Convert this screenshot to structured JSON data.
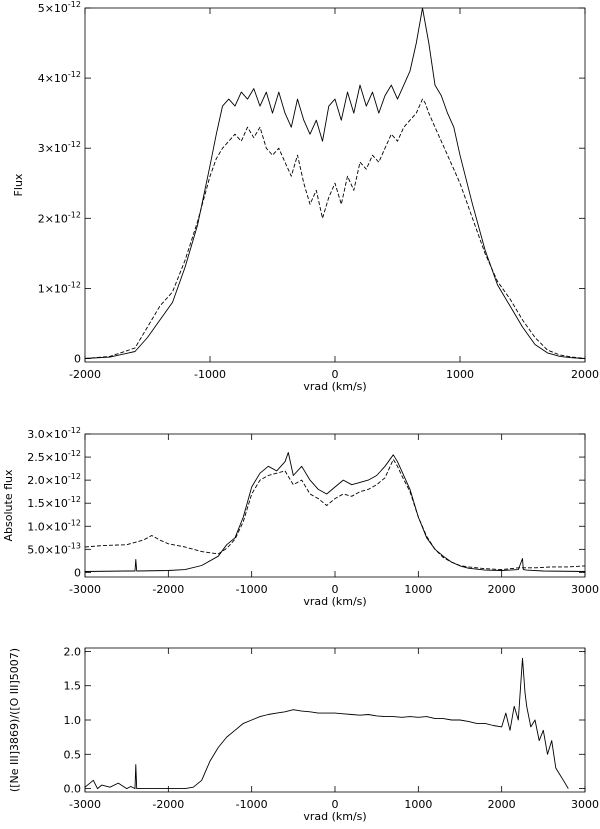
{
  "chart_data": [
    {
      "type": "line",
      "xlabel": "vrad (km/s)",
      "ylabel": "Flux",
      "xlim": [
        -2000,
        2000
      ],
      "ylim": [
        -0.05,
        5.0
      ],
      "y_scale_note": "x10^-12",
      "xticks": [
        -2000,
        -1000,
        0,
        1000,
        2000
      ],
      "xtick_labels": [
        "-2000",
        "-1000",
        "0",
        "1000",
        "2000"
      ],
      "yticks": [
        0,
        1,
        2,
        3,
        4,
        5
      ],
      "ytick_labels": [
        "0",
        "1×10",
        "2×10",
        "3×10",
        "4×10",
        "5×10"
      ],
      "ytick_exp": "-12",
      "series": [
        {
          "style": "solid",
          "x": [
            -2000,
            -1800,
            -1600,
            -1500,
            -1400,
            -1300,
            -1200,
            -1100,
            -1000,
            -950,
            -900,
            -850,
            -800,
            -750,
            -700,
            -650,
            -600,
            -550,
            -500,
            -450,
            -400,
            -350,
            -300,
            -250,
            -200,
            -150,
            -100,
            -50,
            0,
            50,
            100,
            150,
            200,
            250,
            300,
            350,
            400,
            450,
            500,
            550,
            600,
            650,
            700,
            720,
            750,
            800,
            850,
            900,
            950,
            1000,
            1100,
            1200,
            1300,
            1400,
            1500,
            1600,
            1700,
            1800,
            1900,
            2000
          ],
          "y": [
            0.0,
            0.02,
            0.1,
            0.3,
            0.55,
            0.8,
            1.3,
            1.9,
            2.75,
            3.2,
            3.6,
            3.7,
            3.6,
            3.8,
            3.7,
            3.85,
            3.6,
            3.8,
            3.5,
            3.8,
            3.5,
            3.3,
            3.7,
            3.4,
            3.2,
            3.4,
            3.1,
            3.6,
            3.7,
            3.4,
            3.8,
            3.5,
            3.9,
            3.6,
            3.8,
            3.5,
            3.75,
            3.9,
            3.7,
            3.9,
            4.1,
            4.5,
            5.0,
            4.8,
            4.5,
            3.9,
            3.75,
            3.5,
            3.3,
            2.9,
            2.2,
            1.55,
            1.05,
            0.75,
            0.45,
            0.2,
            0.08,
            0.03,
            0.01,
            0.0
          ]
        },
        {
          "style": "dashed",
          "x": [
            -2000,
            -1800,
            -1600,
            -1500,
            -1400,
            -1300,
            -1200,
            -1100,
            -1000,
            -950,
            -900,
            -850,
            -800,
            -750,
            -700,
            -650,
            -600,
            -550,
            -500,
            -450,
            -400,
            -350,
            -300,
            -250,
            -200,
            -150,
            -100,
            -50,
            0,
            50,
            100,
            150,
            200,
            250,
            300,
            350,
            400,
            450,
            500,
            550,
            600,
            650,
            700,
            720,
            750,
            800,
            850,
            900,
            950,
            1000,
            1100,
            1200,
            1300,
            1400,
            1500,
            1600,
            1700,
            1800,
            1900,
            2000
          ],
          "y": [
            0.0,
            0.03,
            0.15,
            0.45,
            0.75,
            0.95,
            1.4,
            1.95,
            2.6,
            2.85,
            3.0,
            3.1,
            3.2,
            3.1,
            3.3,
            3.15,
            3.3,
            3.0,
            2.9,
            3.0,
            2.8,
            2.6,
            2.9,
            2.5,
            2.2,
            2.4,
            2.0,
            2.3,
            2.5,
            2.2,
            2.6,
            2.4,
            2.8,
            2.7,
            2.9,
            2.8,
            3.0,
            3.2,
            3.1,
            3.3,
            3.4,
            3.5,
            3.7,
            3.65,
            3.5,
            3.3,
            3.1,
            2.9,
            2.7,
            2.5,
            2.0,
            1.5,
            1.1,
            0.85,
            0.55,
            0.3,
            0.12,
            0.05,
            0.02,
            0.0
          ]
        }
      ]
    },
    {
      "type": "line",
      "xlabel": "vrad (km/s)",
      "ylabel": "Absolute flux",
      "xlim": [
        -3000,
        3000
      ],
      "ylim": [
        -0.1,
        3.0
      ],
      "xticks": [
        -3000,
        -2000,
        -1000,
        0,
        1000,
        2000,
        3000
      ],
      "xtick_labels": [
        "-3000",
        "-2000",
        "-1000",
        "0",
        "1000",
        "2000",
        "3000"
      ],
      "yticks": [
        0,
        0.5,
        1.0,
        1.5,
        2.0,
        2.5,
        3.0
      ],
      "ytick_labels": [
        "0",
        "5.0×10",
        "1.0×10",
        "1.5×10",
        "2.0×10",
        "2.5×10",
        "3.0×10"
      ],
      "ytick_exps": [
        "",
        "-13",
        "-12",
        "-12",
        "-12",
        "-12",
        "-12"
      ],
      "series": [
        {
          "style": "solid",
          "x": [
            -3000,
            -2500,
            -2400,
            -2390,
            -2380,
            -2000,
            -1800,
            -1600,
            -1400,
            -1300,
            -1200,
            -1100,
            -1000,
            -900,
            -800,
            -700,
            -600,
            -560,
            -500,
            -400,
            -300,
            -200,
            -100,
            0,
            100,
            200,
            300,
            400,
            500,
            600,
            700,
            750,
            800,
            900,
            1000,
            1100,
            1200,
            1300,
            1400,
            1500,
            1600,
            1800,
            2000,
            2200,
            2250,
            2260,
            2300,
            2500,
            3000
          ],
          "y": [
            0.02,
            0.03,
            0.03,
            0.28,
            0.03,
            0.04,
            0.06,
            0.15,
            0.35,
            0.6,
            0.75,
            1.2,
            1.85,
            2.15,
            2.3,
            2.2,
            2.4,
            2.6,
            2.1,
            2.3,
            2.0,
            1.8,
            1.7,
            1.85,
            2.0,
            1.9,
            1.95,
            2.0,
            2.1,
            2.3,
            2.55,
            2.4,
            2.2,
            1.8,
            1.2,
            0.75,
            0.5,
            0.35,
            0.22,
            0.14,
            0.09,
            0.05,
            0.04,
            0.06,
            0.3,
            0.06,
            0.05,
            0.03,
            0.02
          ]
        },
        {
          "style": "dashed",
          "x": [
            -3000,
            -2800,
            -2500,
            -2300,
            -2200,
            -2100,
            -2000,
            -1800,
            -1600,
            -1400,
            -1300,
            -1200,
            -1100,
            -1000,
            -900,
            -800,
            -700,
            -600,
            -500,
            -400,
            -300,
            -200,
            -100,
            0,
            100,
            200,
            300,
            400,
            500,
            600,
            700,
            750,
            800,
            900,
            1000,
            1100,
            1200,
            1300,
            1400,
            1500,
            1600,
            1800,
            2000,
            2200,
            2400,
            2600,
            2800,
            3000
          ],
          "y": [
            0.55,
            0.58,
            0.6,
            0.7,
            0.8,
            0.7,
            0.62,
            0.55,
            0.45,
            0.4,
            0.52,
            0.72,
            1.1,
            1.7,
            2.0,
            2.1,
            2.15,
            2.2,
            1.9,
            2.0,
            1.7,
            1.6,
            1.45,
            1.6,
            1.7,
            1.65,
            1.75,
            1.8,
            1.9,
            2.05,
            2.45,
            2.3,
            2.1,
            1.75,
            1.2,
            0.78,
            0.5,
            0.32,
            0.22,
            0.15,
            0.12,
            0.08,
            0.06,
            0.1,
            0.1,
            0.12,
            0.12,
            0.14
          ]
        }
      ]
    },
    {
      "type": "line",
      "xlabel": "vrad (km/s)",
      "ylabel": "([Ne III]3869)/([O III]5007)",
      "xlim": [
        -3000,
        3000
      ],
      "ylim": [
        -0.05,
        2.05
      ],
      "xticks": [
        -3000,
        -2000,
        -1000,
        0,
        1000,
        2000,
        3000
      ],
      "xtick_labels": [
        "-3000",
        "-2000",
        "-1000",
        "0",
        "1000",
        "2000",
        "3000"
      ],
      "yticks": [
        0.0,
        0.5,
        1.0,
        1.5,
        2.0
      ],
      "ytick_labels": [
        "0.0",
        "0.5",
        "1.0",
        "1.5",
        "2.0"
      ],
      "series": [
        {
          "style": "solid",
          "x": [
            -3000,
            -2900,
            -2850,
            -2800,
            -2700,
            -2600,
            -2500,
            -2450,
            -2400,
            -2390,
            -2380,
            -2200,
            -2000,
            -1900,
            -1800,
            -1700,
            -1600,
            -1500,
            -1400,
            -1300,
            -1200,
            -1100,
            -1000,
            -900,
            -800,
            -700,
            -600,
            -500,
            -400,
            -300,
            -200,
            -100,
            0,
            100,
            200,
            300,
            400,
            500,
            600,
            700,
            800,
            900,
            1000,
            1100,
            1200,
            1300,
            1400,
            1500,
            1600,
            1700,
            1800,
            1900,
            2000,
            2050,
            2100,
            2150,
            2200,
            2250,
            2280,
            2300,
            2350,
            2400,
            2450,
            2500,
            2550,
            2600,
            2650,
            2700,
            2750,
            2800
          ],
          "y": [
            0.02,
            0.12,
            0.0,
            0.05,
            0.02,
            0.08,
            0.0,
            0.03,
            0.0,
            0.35,
            0.0,
            0.0,
            0.0,
            0.0,
            0.0,
            0.02,
            0.12,
            0.4,
            0.6,
            0.75,
            0.85,
            0.95,
            1.0,
            1.05,
            1.08,
            1.1,
            1.12,
            1.15,
            1.13,
            1.12,
            1.1,
            1.1,
            1.1,
            1.09,
            1.08,
            1.07,
            1.08,
            1.06,
            1.05,
            1.05,
            1.04,
            1.05,
            1.04,
            1.05,
            1.02,
            1.02,
            1.0,
            1.0,
            0.98,
            0.95,
            0.95,
            0.92,
            0.9,
            1.1,
            0.85,
            1.2,
            1.0,
            1.9,
            1.4,
            1.2,
            0.9,
            1.0,
            0.7,
            0.85,
            0.5,
            0.7,
            0.3,
            0.2,
            0.1,
            0.0
          ]
        }
      ]
    }
  ]
}
